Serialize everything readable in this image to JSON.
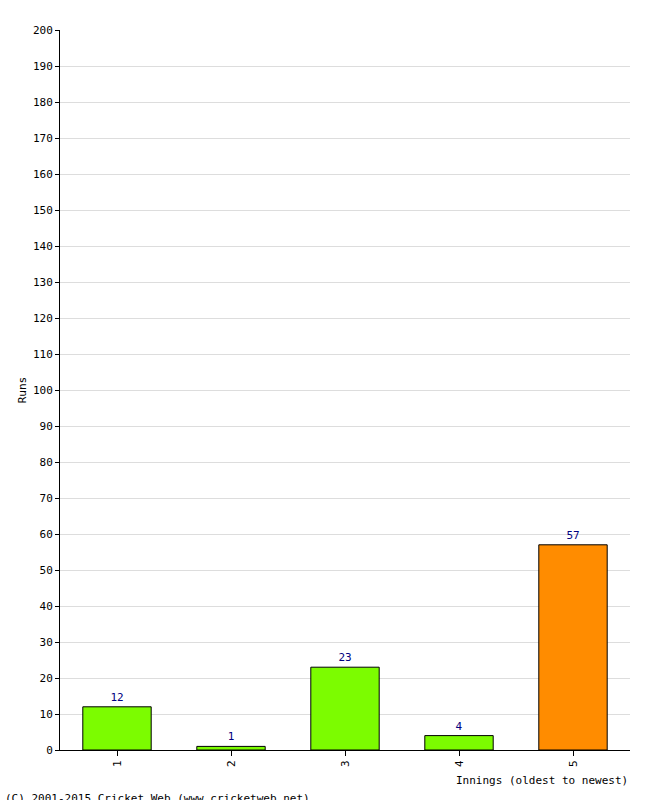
{
  "chart_data": {
    "type": "bar",
    "x_label": "Innings (oldest to newest)",
    "y_label": "Runs",
    "categories": [
      "1",
      "2",
      "3",
      "4",
      "5"
    ],
    "values": [
      12,
      1,
      23,
      4,
      57
    ],
    "colors": [
      "#7cfc00",
      "#7cfc00",
      "#7cfc00",
      "#7cfc00",
      "#ff8c00"
    ],
    "ylim": [
      0,
      200
    ],
    "yticks": [
      0,
      10,
      20,
      30,
      40,
      50,
      60,
      70,
      80,
      90,
      100,
      110,
      120,
      130,
      140,
      150,
      160,
      170,
      180,
      190,
      200
    ],
    "grid": true,
    "data_labels": true,
    "annotations": [
      "(C) 2001-2015 Cricket Web (www.cricketweb.net)"
    ]
  }
}
